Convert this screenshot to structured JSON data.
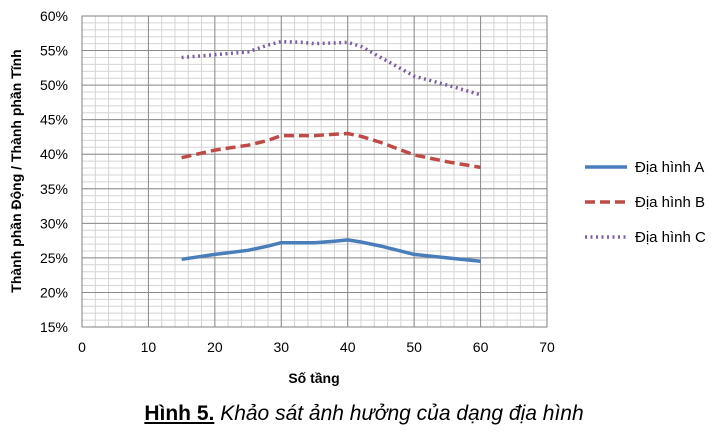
{
  "chart_data": {
    "type": "line",
    "xlabel": "Số tầng",
    "ylabel": "Thành phần Động / Thành phần Tĩnh",
    "xlim": [
      0,
      70
    ],
    "ylim": [
      15,
      60
    ],
    "x_ticks": [
      "0",
      "10",
      "20",
      "30",
      "40",
      "50",
      "60",
      "70"
    ],
    "y_ticks": [
      "15%",
      "20%",
      "25%",
      "30%",
      "35%",
      "40%",
      "45%",
      "50%",
      "55%",
      "60%"
    ],
    "grid": true,
    "legend_position": "right",
    "series": [
      {
        "name": "Địa hình A",
        "color": "#4a7ebb",
        "style": "solid",
        "x": [
          15,
          20,
          25,
          28,
          30,
          35,
          38,
          40,
          42,
          45,
          50,
          55,
          60
        ],
        "y": [
          24.8,
          25.5,
          26.1,
          26.7,
          27.2,
          27.2,
          27.4,
          27.6,
          27.3,
          26.7,
          25.5,
          25.0,
          24.5
        ]
      },
      {
        "name": "Địa hình B",
        "color": "#be4b48",
        "style": "dashed",
        "x": [
          15,
          20,
          25,
          28,
          30,
          35,
          38,
          40,
          42,
          45,
          50,
          55,
          60
        ],
        "y": [
          39.5,
          40.6,
          41.3,
          42.0,
          42.7,
          42.7,
          42.9,
          43.0,
          42.6,
          41.7,
          39.9,
          38.9,
          38.1
        ]
      },
      {
        "name": "Địa hình C",
        "color": "#7d60a0",
        "style": "dotted",
        "x": [
          15,
          20,
          25,
          28,
          30,
          33,
          35,
          38,
          40,
          42,
          45,
          50,
          55,
          60
        ],
        "y": [
          54.0,
          54.4,
          54.8,
          55.8,
          56.3,
          56.2,
          56.0,
          56.1,
          56.2,
          55.6,
          54.0,
          51.3,
          50.0,
          48.6
        ]
      }
    ]
  },
  "caption": {
    "label": "Hình 5.",
    "text": " Khảo sát ảnh hưởng của dạng địa hình"
  }
}
